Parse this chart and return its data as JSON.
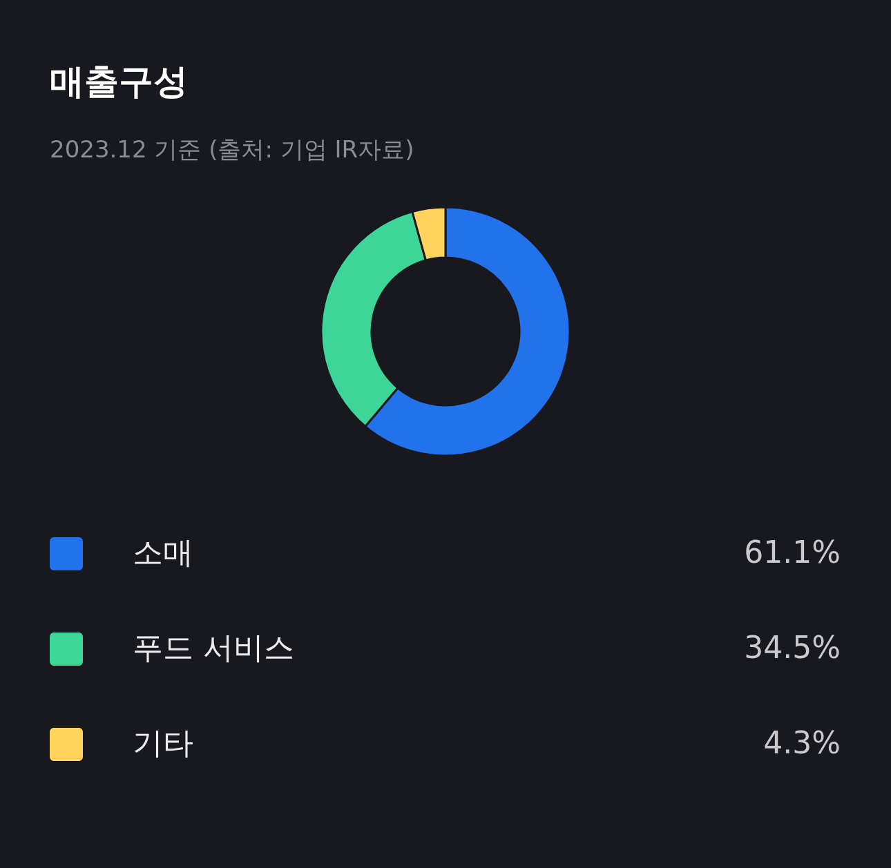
{
  "chart_data": {
    "type": "donut",
    "title": "매출구성",
    "subtitle": "2023.12 기준 (출처: 기업 IR자료)",
    "categories": [
      "소매",
      "푸드 서비스",
      "기타"
    ],
    "values": [
      61.1,
      34.5,
      4.3
    ],
    "colors": [
      "#2273eb",
      "#3ed598",
      "#ffd35c"
    ],
    "value_labels": [
      "61.1%",
      "34.5%",
      "4.3%"
    ],
    "legend": "bottom"
  }
}
